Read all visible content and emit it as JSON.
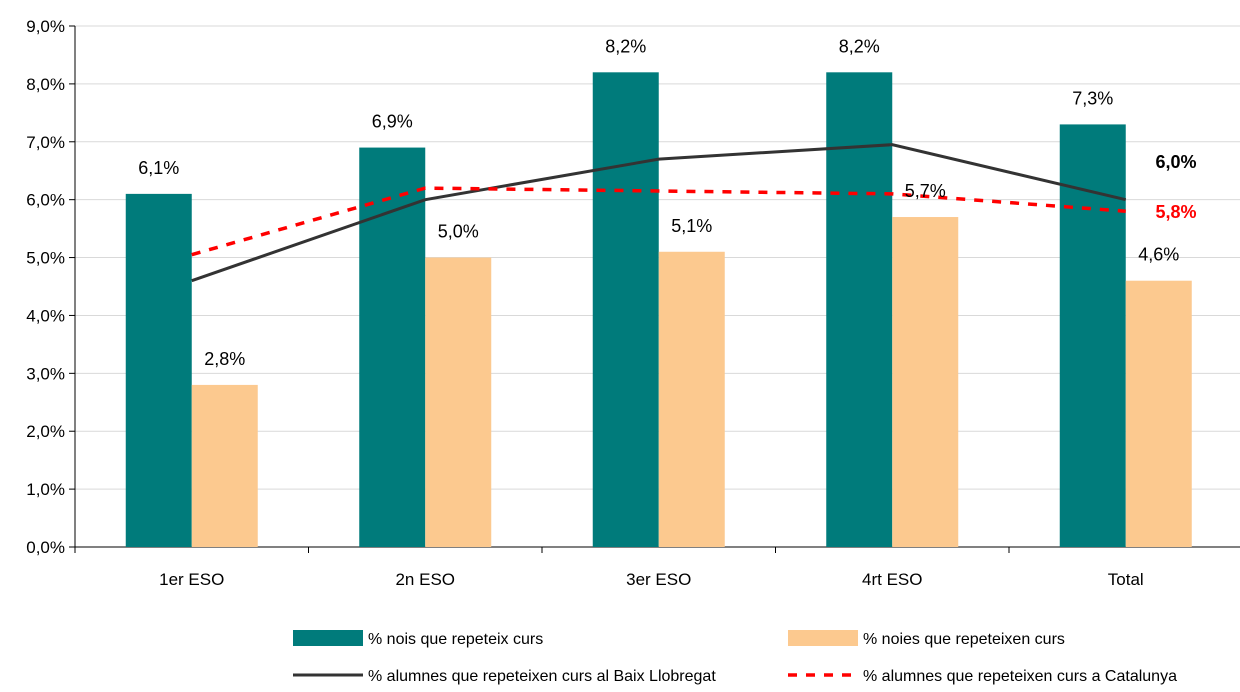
{
  "chart_data": {
    "type": "bar",
    "categories": [
      "1er ESO",
      "2n ESO",
      "3er ESO",
      "4rt ESO",
      "Total"
    ],
    "ylim": [
      0,
      9
    ],
    "y_ticks": [
      "0,0%",
      "1,0%",
      "2,0%",
      "3,0%",
      "4,0%",
      "5,0%",
      "6,0%",
      "7,0%",
      "8,0%",
      "9,0%"
    ],
    "grid": true,
    "legend_position": "bottom",
    "series": [
      {
        "name": "%  nois que repeteix curs",
        "kind": "bar",
        "color": "#007b7b",
        "values": [
          6.1,
          6.9,
          8.2,
          8.2,
          7.3
        ],
        "labels": [
          "6,1%",
          "6,9%",
          "8,2%",
          "8,2%",
          "7,3%"
        ]
      },
      {
        "name": "% noies que repeteixen curs",
        "kind": "bar",
        "color": "#fcc98f",
        "values": [
          2.8,
          5.0,
          5.1,
          5.7,
          4.6
        ],
        "labels": [
          "2,8%",
          "5,0%",
          "5,1%",
          "5,7%",
          "4,6%"
        ]
      },
      {
        "name": "%  alumnes que repeteixen curs al Baix Llobregat",
        "kind": "line",
        "style": "solid",
        "color": "#333333",
        "values": [
          4.6,
          6.0,
          6.7,
          6.95,
          6.0
        ],
        "end_label": "6,0%",
        "end_label_color": "#000000"
      },
      {
        "name": "%  alumnes que repeteixen curs a Catalunya",
        "kind": "line",
        "style": "dashed",
        "color": "#ff0000",
        "values": [
          5.05,
          6.2,
          6.15,
          6.1,
          5.8
        ],
        "end_label": "5,8%",
        "end_label_color": "#ff0000"
      }
    ]
  }
}
